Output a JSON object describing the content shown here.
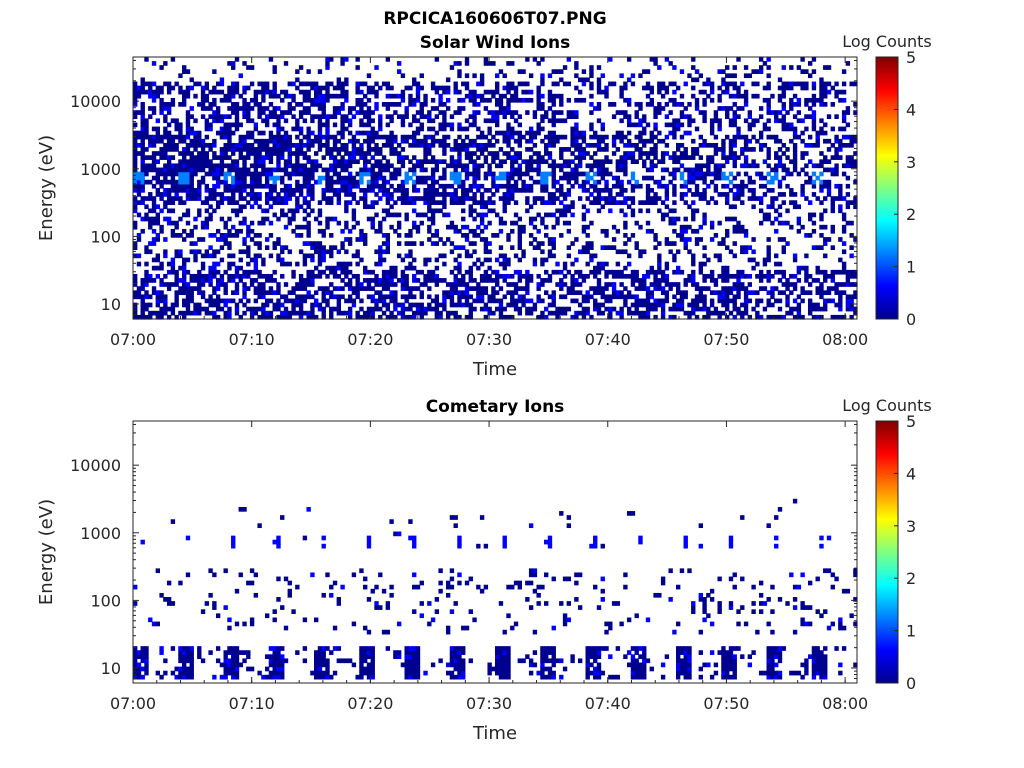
{
  "figure": {
    "title": "RPCICA160606T07.PNG"
  },
  "colormap": [
    "#00008f",
    "#0000ff",
    "#0080ff",
    "#00ffff",
    "#80ff80",
    "#ffff00",
    "#ff8000",
    "#ff0000",
    "#800000"
  ],
  "chart_data": [
    {
      "type": "heatmap",
      "title": "Solar Wind Ions",
      "xlabel": "Time",
      "ylabel": "Energy (eV)",
      "xlim": [
        "07:00",
        "08:01"
      ],
      "x_ticks": [
        "07:00",
        "07:10",
        "07:20",
        "07:30",
        "07:40",
        "07:50",
        "08:00"
      ],
      "ylim": [
        6,
        45000
      ],
      "yscale": "log",
      "y_ticks": [
        "10",
        "100",
        "1000",
        "10000"
      ],
      "colorbar": {
        "label": "Log Counts",
        "ticks": [
          "0",
          "1",
          "2",
          "3",
          "4",
          "5"
        ],
        "range": [
          0,
          5
        ]
      },
      "peak_energy_band": 760,
      "peak_log_counts": 1.3,
      "background_log_counts": 0.1
    },
    {
      "type": "heatmap",
      "title": "Cometary Ions",
      "xlabel": "Time",
      "ylabel": "Energy (eV)",
      "xlim": [
        "07:00",
        "08:01"
      ],
      "x_ticks": [
        "07:00",
        "07:10",
        "07:20",
        "07:30",
        "07:40",
        "07:50",
        "08:00"
      ],
      "ylim": [
        6,
        45000
      ],
      "yscale": "log",
      "y_ticks": [
        "10",
        "100",
        "1000",
        "10000"
      ],
      "colorbar": {
        "label": "Log Counts",
        "ticks": [
          "0",
          "1",
          "2",
          "3",
          "4",
          "5"
        ],
        "range": [
          0,
          5
        ]
      },
      "peak_energy_band": 760,
      "low_energy_band": [
        7,
        22
      ],
      "peak_log_counts": 0.8,
      "background_log_counts": 0.1
    }
  ]
}
